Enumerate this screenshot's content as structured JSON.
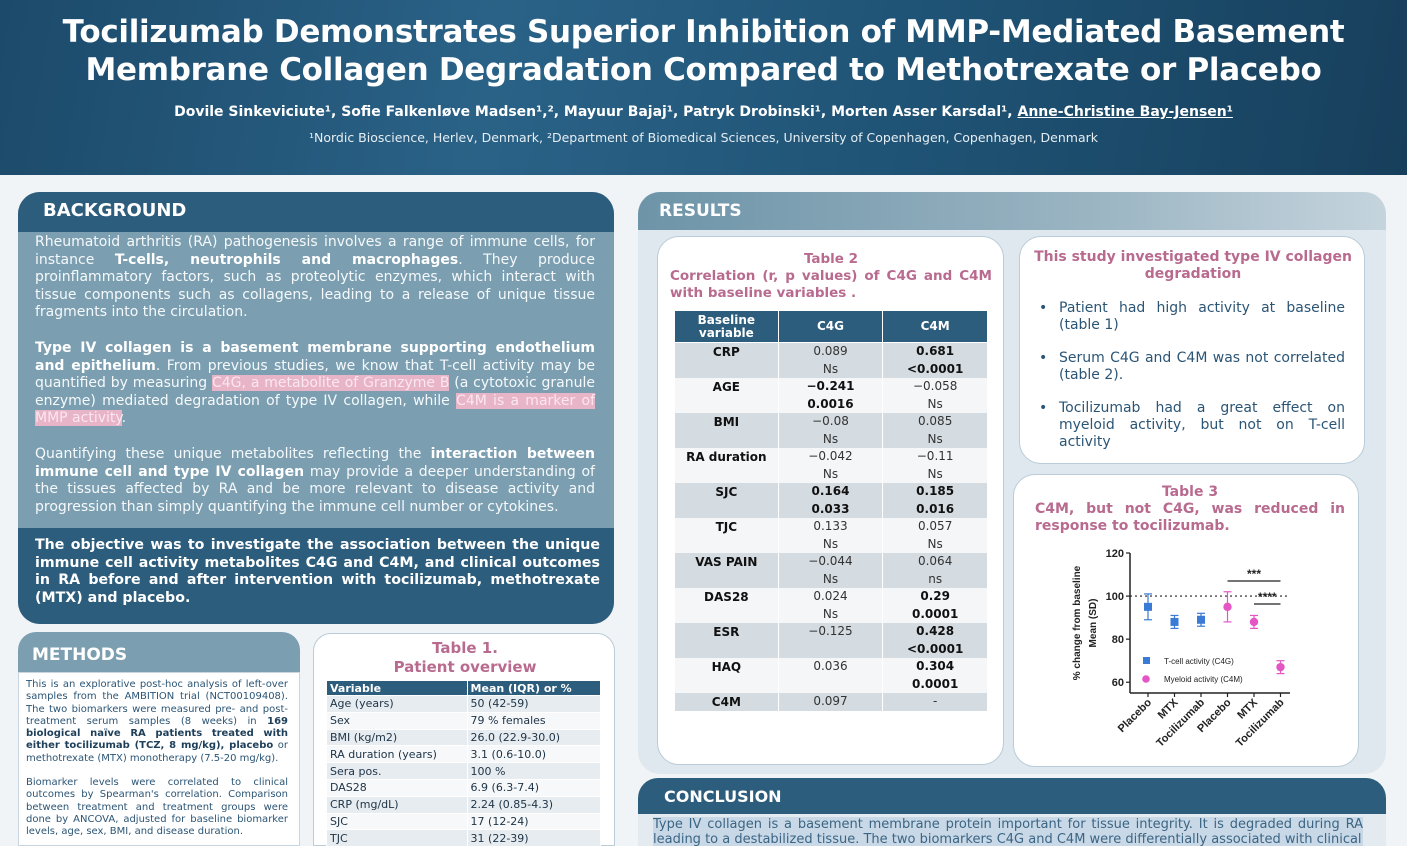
{
  "header": {
    "title_line1": "Tocilizumab Demonstrates Superior Inhibition of MMP-Mediated Basement",
    "title_line2": "Membrane Collagen Degradation Compared to Methotrexate or Placebo",
    "authors": "Dovile Sinkeviciute¹, Sofie Falkenløve Madsen¹,², Mayuur Bajaj¹, Patryk Drobinski¹, Morten Asser Karsdal¹,",
    "last_author": "Anne-Christine Bay-Jensen¹",
    "affiliations": "¹Nordic Bioscience, Herlev, Denmark, ²Department of Biomedical Sciences, University of Copenhagen, Copenhagen, Denmark"
  },
  "background": {
    "heading": "BACKGROUND",
    "p1_a": "Rheumatoid arthritis (RA) pathogenesis involves a range of immune cells, for instance ",
    "p1_b": "T-cells, neutrophils and macrophages",
    "p1_c": ". They produce proinflammatory factors, such as proteolytic enzymes, which interact with tissue components such as collagens, leading to a release of unique tissue fragments into the circulation.",
    "p2_a": "Type IV collagen is a basement membrane supporting endothelium and epithelium",
    "p2_b": ". From previous studies, we know that T-cell activity may be quantified by measuring ",
    "p2_c": "C4G, a metabolite of Granzyme B",
    "p2_d": " (a cytotoxic granule enzyme) mediated degradation of type IV collagen, while ",
    "p2_e": "C4M is a marker of MMP activity",
    "p2_f": ".",
    "p3_a": "Quantifying these unique metabolites reflecting the ",
    "p3_b": "interaction between immune cell and type IV collagen",
    "p3_c": " may provide a deeper understanding of the tissues affected by RA and be more relevant to disease activity and progression than simply quantifying the immune cell number or cytokines.",
    "objective": "The objective was to investigate the association between the unique immune cell activity metabolites C4G and C4M, and clinical outcomes in RA before and after intervention with tocilizumab, methotrexate (MTX) and placebo."
  },
  "methods": {
    "heading": "METHODS",
    "p1_a": "This is an explorative post-hoc analysis of left-over samples from the AMBITION trial (NCT00109408). The two biomarkers were measured pre- and post-treatment serum samples (8 weeks) in ",
    "p1_b": "169 biological naïve RA patients treated with either tocilizumab (TCZ, 8 mg/kg), placebo",
    "p1_c": " or methotrexate (MTX) monotherapy (7.5-20 mg/kg).",
    "p2": "Biomarker levels were correlated to clinical outcomes by Spearman's correlation. Comparison between treatment and treatment groups were done by ANCOVA, adjusted for baseline biomarker levels, age, sex, BMI, and disease duration."
  },
  "table1": {
    "title_line1": "Table 1.",
    "title_line2": "Patient overview",
    "headers": [
      "Variable",
      "Mean (IQR) or %"
    ],
    "rows": [
      [
        "Age (years)",
        "50 (42-59)"
      ],
      [
        "Sex",
        "79 % females"
      ],
      [
        "BMI (kg/m2)",
        "26.0 (22.9-30.0)"
      ],
      [
        "RA duration (years)",
        "3.1 (0.6-10.0)"
      ],
      [
        "Sera pos.",
        "100 %"
      ],
      [
        "DAS28",
        "6.9 (6.3-7.4)"
      ],
      [
        "CRP (mg/dL)",
        "2.24 (0.85-4.3)"
      ],
      [
        "SJC",
        "17 (12-24)"
      ],
      [
        "TJC",
        "31 (22-39)"
      ]
    ]
  },
  "results": {
    "heading": "RESULTS"
  },
  "table2": {
    "title_line1": "Table 2",
    "title_line2": "Correlation (r, p values) of C4G and C4M with baseline variables .",
    "headers": [
      "Baseline variable",
      "C4G",
      "C4M"
    ],
    "rows": [
      {
        "var": "CRP",
        "c4g_r": "0.089",
        "c4g_p": "Ns",
        "c4m_r": "0.681",
        "c4m_p": "<0.0001",
        "c4g_bold": false,
        "c4m_bold": true
      },
      {
        "var": "AGE",
        "c4g_r": "−0.241",
        "c4g_p": "0.0016",
        "c4m_r": "−0.058",
        "c4m_p": "Ns",
        "c4g_bold": true,
        "c4m_bold": false
      },
      {
        "var": "BMI",
        "c4g_r": "−0.08",
        "c4g_p": "Ns",
        "c4m_r": "0.085",
        "c4m_p": "Ns",
        "c4g_bold": false,
        "c4m_bold": false
      },
      {
        "var": "RA duration",
        "c4g_r": "−0.042",
        "c4g_p": "Ns",
        "c4m_r": "−0.11",
        "c4m_p": "Ns",
        "c4g_bold": false,
        "c4m_bold": false
      },
      {
        "var": "SJC",
        "c4g_r": "0.164",
        "c4g_p": "0.033",
        "c4m_r": "0.185",
        "c4m_p": "0.016",
        "c4g_bold": true,
        "c4m_bold": true
      },
      {
        "var": "TJC",
        "c4g_r": "0.133",
        "c4g_p": "Ns",
        "c4m_r": "0.057",
        "c4m_p": "Ns",
        "c4g_bold": false,
        "c4m_bold": false
      },
      {
        "var": "VAS PAIN",
        "c4g_r": "−0.044",
        "c4g_p": "Ns",
        "c4m_r": "0.064",
        "c4m_p": "ns",
        "c4g_bold": false,
        "c4m_bold": false
      },
      {
        "var": "DAS28",
        "c4g_r": "0.024",
        "c4g_p": "Ns",
        "c4m_r": "0.29",
        "c4m_p": "0.0001",
        "c4g_bold": false,
        "c4m_bold": true
      },
      {
        "var": "ESR",
        "c4g_r": "−0.125",
        "c4g_p": "",
        "c4m_r": "0.428",
        "c4m_p": "<0.0001",
        "c4g_bold": false,
        "c4m_bold": true
      },
      {
        "var": "HAQ",
        "c4g_r": "0.036",
        "c4g_p": "",
        "c4m_r": "0.304",
        "c4m_p": "0.0001",
        "c4g_bold": false,
        "c4m_bold": true
      },
      {
        "var": "C4M",
        "c4g_r": "0.097",
        "c4g_p": "",
        "c4m_r": "-",
        "c4m_p": "",
        "c4g_bold": false,
        "c4m_bold": false
      }
    ]
  },
  "study": {
    "title": "This study investigated type IV collagen degradation",
    "bullets": [
      "Patient had high activity at baseline (table 1)",
      "Serum C4G and C4M was not correlated (table 2).",
      "Tocilizumab had a great effect on myeloid activity, but not on T-cell activity"
    ]
  },
  "table3": {
    "title_line1": "Table 3",
    "title_line2": "C4M, but not C4G, was reduced in response to tocilizumab."
  },
  "chart_data": {
    "type": "scatter",
    "ylabel_line1": "% change from baseline",
    "ylabel_line2": "Mean (SD)",
    "ylim": [
      55,
      120
    ],
    "yticks": [
      60,
      80,
      100,
      120
    ],
    "categories": [
      "Placebo",
      "MTX",
      "Tocilizumab",
      "Placebo",
      "MTX",
      "Tocilizumab"
    ],
    "reference_line": 100,
    "series": [
      {
        "name": "T-cell activity (C4G)",
        "color": "#3a7bd5",
        "marker": "square",
        "points": [
          {
            "cat": 0,
            "y": 95,
            "sd": 6
          },
          {
            "cat": 1,
            "y": 88,
            "sd": 3
          },
          {
            "cat": 2,
            "y": 89,
            "sd": 3
          }
        ]
      },
      {
        "name": "Myeloid activity (C4M)",
        "color": "#e456c6",
        "marker": "circle",
        "points": [
          {
            "cat": 3,
            "y": 95,
            "sd": 7
          },
          {
            "cat": 4,
            "y": 88,
            "sd": 3
          },
          {
            "cat": 5,
            "y": 67,
            "sd": 3
          }
        ]
      }
    ],
    "annotations": [
      {
        "text": "***",
        "from_cat": 3,
        "to_cat": 5
      },
      {
        "text": "****",
        "from_cat": 4,
        "to_cat": 5
      }
    ]
  },
  "conclusion": {
    "heading": "CONCLUSION",
    "text": "Type IV collagen is a basement membrane protein important for tissue integrity. It is degraded during RA leading to a destabilized tissue. The two biomarkers C4G and C4M were differentially associated with clinical"
  }
}
